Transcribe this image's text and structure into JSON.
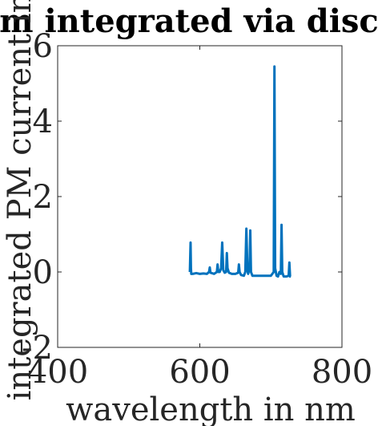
{
  "chart_data": {
    "type": "line",
    "title": "m integrated via disc",
    "xlabel": "wavelength in nm",
    "ylabel": "integrated PM current in",
    "xlim": [
      400,
      800
    ],
    "ylim": [
      -2,
      6
    ],
    "xticks": [
      {
        "value": 400,
        "label": "400"
      },
      {
        "value": 600,
        "label": "600"
      },
      {
        "value": 800,
        "label": "800"
      }
    ],
    "yticks": [
      {
        "value": -2,
        "label": "-2"
      },
      {
        "value": 0,
        "label": "0"
      },
      {
        "value": 2,
        "label": "2"
      },
      {
        "value": 4,
        "label": "4"
      },
      {
        "value": 6,
        "label": "6"
      }
    ],
    "grid": false,
    "series": [
      {
        "color": "#0072BD",
        "x": [
          586,
          587,
          587.5,
          588,
          590,
          595,
          600,
          605,
          610,
          613,
          614,
          615,
          620,
          624,
          625,
          626,
          628,
          630,
          631.5,
          633,
          635,
          637,
          638,
          639,
          641,
          645,
          650,
          654,
          655,
          656,
          658,
          662,
          664,
          665.5,
          667,
          668,
          670,
          671,
          672,
          674,
          680,
          690,
          700,
          702,
          704,
          705,
          706,
          708,
          710,
          712,
          714,
          715,
          716,
          718,
          722,
          725,
          726,
          727,
          728
        ],
        "y": [
          0.0,
          0.78,
          0.1,
          -0.05,
          -0.05,
          -0.03,
          -0.05,
          -0.04,
          -0.05,
          0.0,
          0.12,
          -0.02,
          -0.05,
          0.0,
          0.2,
          0.0,
          0.0,
          0.1,
          0.78,
          0.05,
          -0.02,
          0.0,
          0.5,
          0.1,
          -0.02,
          -0.05,
          -0.05,
          -0.02,
          0.2,
          0.0,
          -0.08,
          -0.1,
          0.0,
          1.15,
          0.05,
          -0.05,
          0.1,
          1.1,
          0.0,
          -0.1,
          -0.1,
          -0.1,
          -0.1,
          -0.05,
          0.0,
          5.45,
          0.1,
          -0.1,
          -0.12,
          0.0,
          -0.05,
          1.25,
          0.0,
          -0.12,
          -0.12,
          -0.1,
          0.25,
          -0.12,
          -0.12
        ]
      }
    ]
  }
}
